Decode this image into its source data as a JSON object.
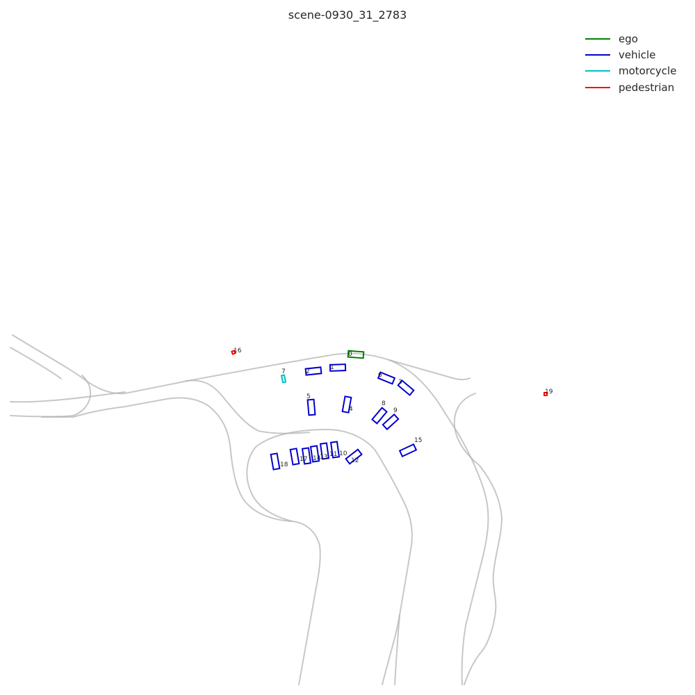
{
  "title": "scene-0930_31_2783",
  "legend": [
    {
      "label": "ego",
      "color": "#008000"
    },
    {
      "label": "vehicle",
      "color": "#0000cc"
    },
    {
      "label": "motorcycle",
      "color": "#00bfbf"
    },
    {
      "label": "pedestrian",
      "color": "#ff0000"
    }
  ],
  "agents": [
    {
      "id": "0",
      "category": "ego"
    },
    {
      "id": "1",
      "category": "vehicle"
    },
    {
      "id": "2",
      "category": "vehicle"
    },
    {
      "id": "3",
      "category": "vehicle"
    },
    {
      "id": "4",
      "category": "vehicle"
    },
    {
      "id": "5",
      "category": "vehicle"
    },
    {
      "id": "6",
      "category": "vehicle"
    },
    {
      "id": "7",
      "category": "motorcycle"
    },
    {
      "id": "8",
      "category": "vehicle"
    },
    {
      "id": "9",
      "category": "vehicle"
    },
    {
      "id": "10",
      "category": "vehicle"
    },
    {
      "id": "11",
      "category": "vehicle"
    },
    {
      "id": "12",
      "category": "vehicle"
    },
    {
      "id": "13",
      "category": "vehicle"
    },
    {
      "id": "14",
      "category": "vehicle"
    },
    {
      "id": "15",
      "category": "vehicle"
    },
    {
      "id": "16",
      "category": "pedestrian"
    },
    {
      "id": "17",
      "category": "vehicle"
    },
    {
      "id": "18",
      "category": "vehicle"
    },
    {
      "id": "19",
      "category": "pedestrian"
    }
  ]
}
